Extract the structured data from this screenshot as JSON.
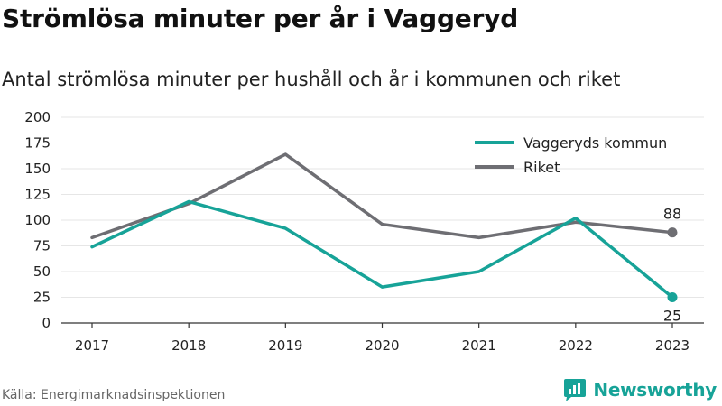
{
  "header": {
    "title": "Strömlösa minuter per år i Vaggeryd",
    "subtitle": "Antal strömlösa minuter per hushåll och år i kommunen och riket"
  },
  "footer": {
    "source": "Källa: Energimarknadsinspektionen",
    "brand": "Newsworthy"
  },
  "chart_data": {
    "type": "line",
    "title": "Strömlösa minuter per år i Vaggeryd",
    "subtitle": "Antal strömlösa minuter per hushåll och år i kommunen och riket",
    "x": [
      "2017",
      "2018",
      "2019",
      "2020",
      "2021",
      "2022",
      "2023"
    ],
    "ylim": [
      0,
      200
    ],
    "yticks": [
      0,
      25,
      50,
      75,
      100,
      125,
      150,
      175,
      200
    ],
    "grid": true,
    "legend": "top-right",
    "series": [
      {
        "name": "Vaggeryds kommun",
        "color": "#17a398",
        "values": [
          74,
          118,
          92,
          35,
          50,
          102,
          25
        ],
        "end_label": "25"
      },
      {
        "name": "Riket",
        "color": "#6e6e73",
        "values": [
          83,
          116,
          164,
          96,
          83,
          98,
          88
        ],
        "end_label": "88"
      }
    ]
  }
}
